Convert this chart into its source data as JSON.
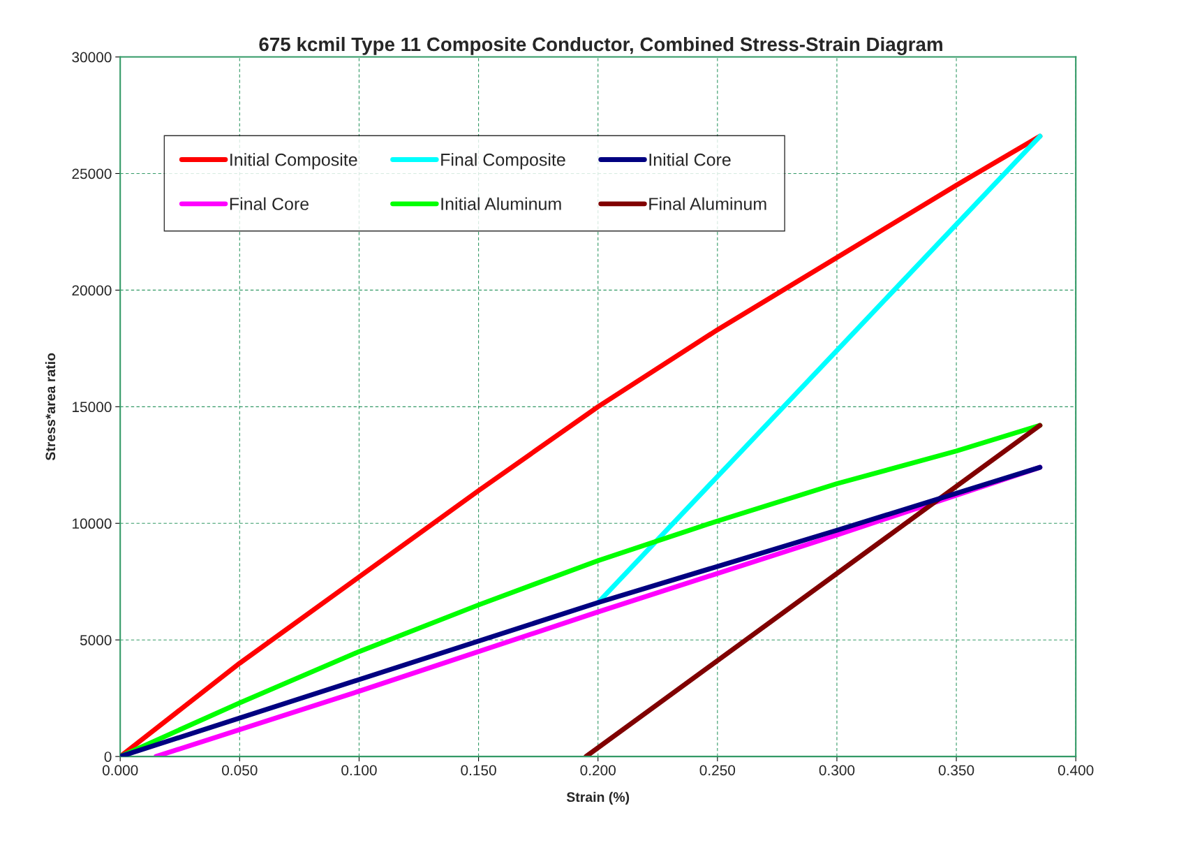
{
  "chart_data": {
    "type": "line",
    "title": "675 kcmil Type 11 Composite Conductor, Combined Stress-Strain Diagram",
    "xlabel": "Strain (%)",
    "ylabel": "Stress*area ratio",
    "xlim": [
      0,
      0.4
    ],
    "xticks": [
      {
        "value": 0,
        "label": "0.000"
      },
      {
        "value": 0.05,
        "label": "0.050"
      },
      {
        "value": 0.1,
        "label": "0.100"
      },
      {
        "value": 0.15,
        "label": "0.150"
      },
      {
        "value": 0.2,
        "label": "0.200"
      },
      {
        "value": 0.25,
        "label": "0.250"
      },
      {
        "value": 0.3,
        "label": "0.300"
      },
      {
        "value": 0.35,
        "label": "0.350"
      },
      {
        "value": 0.4,
        "label": "0.400"
      }
    ],
    "ylim": [
      0,
      30000
    ],
    "yticks": [
      0,
      5000,
      10000,
      15000,
      20000,
      25000,
      30000
    ],
    "grid": true,
    "legend": "top left",
    "marker": "none",
    "line_style": "solid",
    "series": [
      {
        "name": "Initial Composite",
        "color": "#ff0000",
        "x": [
          0,
          0.05,
          0.1,
          0.15,
          0.2,
          0.25,
          0.3,
          0.35,
          0.385
        ],
        "values": [
          0,
          4000,
          7700,
          11400,
          15000,
          18300,
          21400,
          24500,
          26600
        ]
      },
      {
        "name": "Final Composite",
        "color": "#00ffff",
        "x": [
          0.2,
          0.385
        ],
        "values": [
          6600,
          26600
        ]
      },
      {
        "name": "Initial Core",
        "color": "#000080",
        "x": [
          0,
          0.1,
          0.2,
          0.3,
          0.385
        ],
        "values": [
          0,
          3300,
          6600,
          9700,
          12400
        ]
      },
      {
        "name": "Final Core",
        "color": "#ff00ff",
        "x": [
          0.015,
          0.1,
          0.2,
          0.3,
          0.385
        ],
        "values": [
          0,
          2800,
          6200,
          9500,
          12400
        ]
      },
      {
        "name": "Initial Aluminum",
        "color": "#00ff00",
        "x": [
          0,
          0.05,
          0.1,
          0.15,
          0.2,
          0.25,
          0.3,
          0.35,
          0.385
        ],
        "values": [
          0,
          2300,
          4500,
          6500,
          8400,
          10100,
          11700,
          13100,
          14200
        ]
      },
      {
        "name": "Final Aluminum",
        "color": "#800000",
        "x": [
          0.195,
          0.385
        ],
        "values": [
          0,
          14200
        ]
      }
    ]
  }
}
